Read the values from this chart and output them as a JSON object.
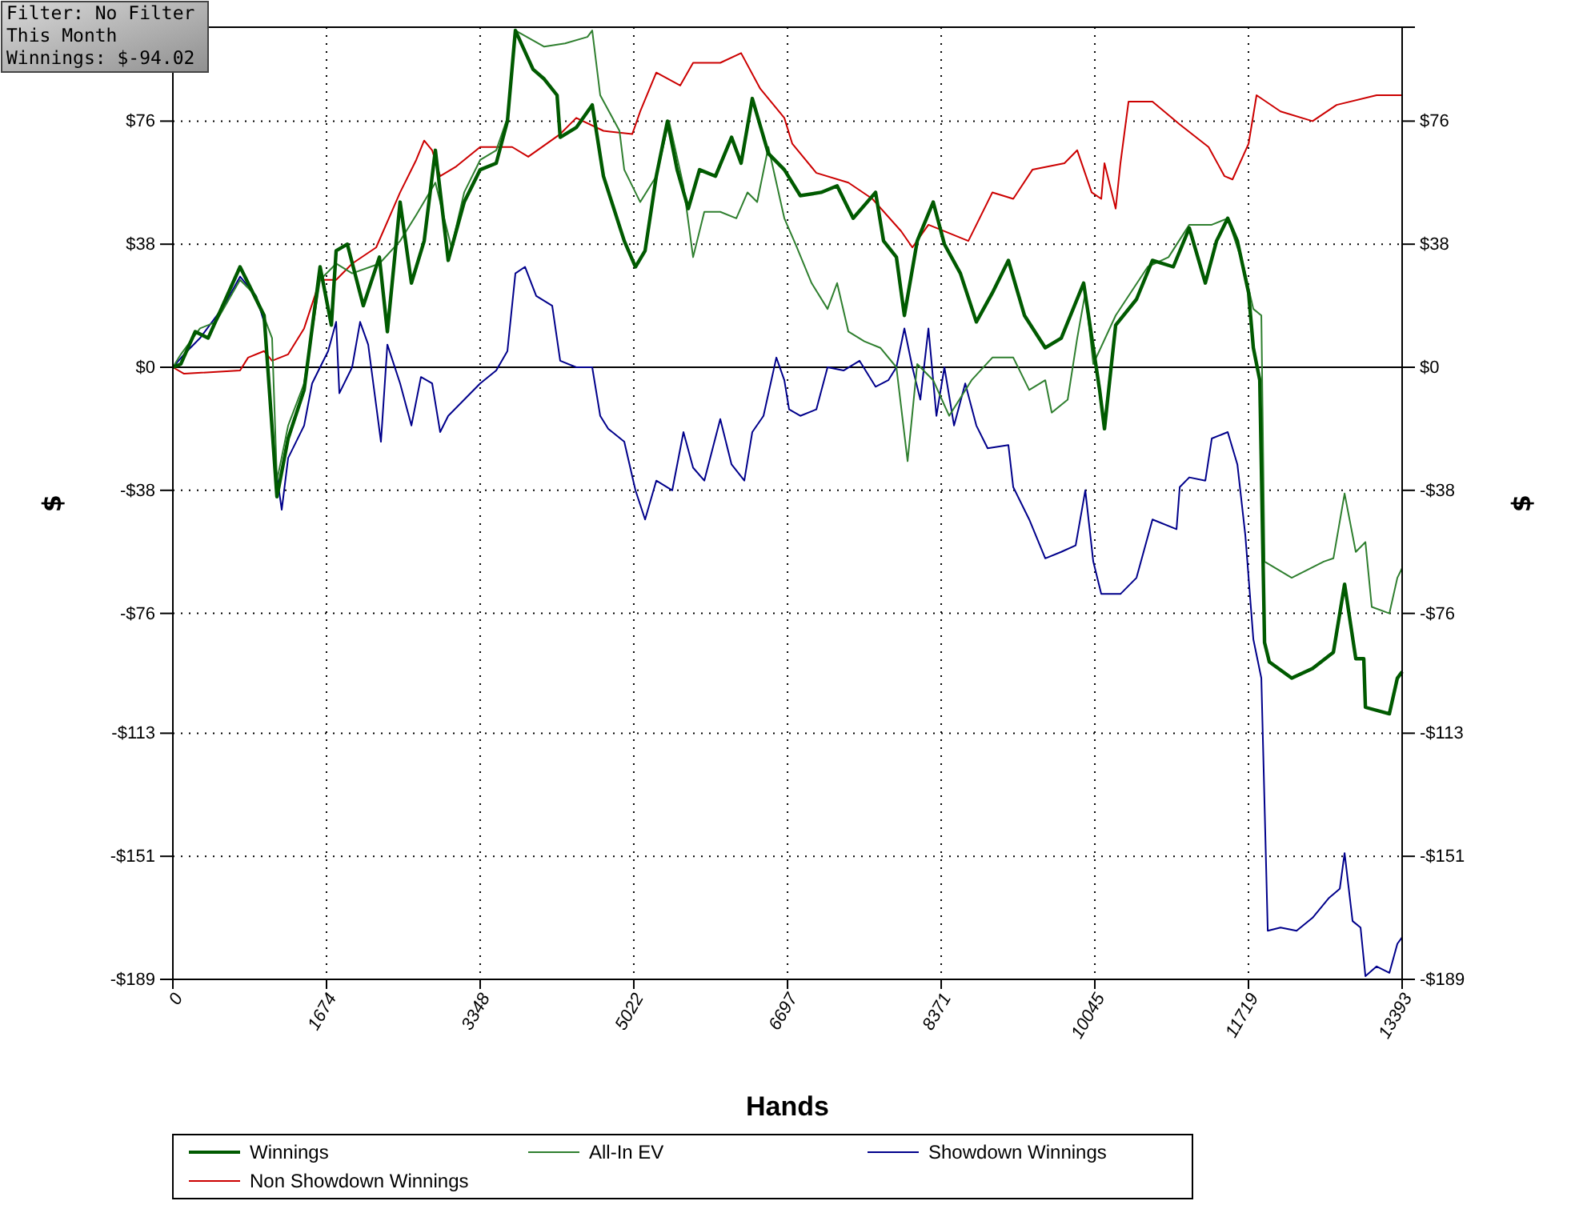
{
  "chart_data": {
    "type": "line",
    "xlabel": "Hands",
    "ylabel": "$",
    "y2label": "$",
    "annotations": [
      "Filter: No Filter",
      "This Month",
      "Winnings: $-94.02"
    ],
    "xlim": [
      0,
      13393
    ],
    "xticks": [
      0,
      1674,
      3348,
      5022,
      6697,
      8371,
      10045,
      11719,
      13393
    ],
    "ylim": [
      -189,
      105
    ],
    "yticks": [
      {
        "value": -189,
        "label": "-$189"
      },
      {
        "value": -151,
        "label": "-$151"
      },
      {
        "value": -113,
        "label": "-$113"
      },
      {
        "value": -76,
        "label": "-$76"
      },
      {
        "value": -38,
        "label": "-$38"
      },
      {
        "value": 0,
        "label": "$0"
      },
      {
        "value": 38,
        "label": "$38"
      },
      {
        "value": 76,
        "label": "$76"
      }
    ],
    "y2lim": [
      -189,
      105
    ],
    "y2ticks": [
      {
        "value": -189,
        "label": "-$189"
      },
      {
        "value": -151,
        "label": "-$151"
      },
      {
        "value": -113,
        "label": "-$113"
      },
      {
        "value": -76,
        "label": "-$76"
      },
      {
        "value": -38,
        "label": "-$38"
      },
      {
        "value": 0,
        "label": "$0"
      },
      {
        "value": 38,
        "label": "$38"
      },
      {
        "value": 76,
        "label": "$76"
      }
    ],
    "grid": true,
    "legend": "bottom",
    "line_style": "solid",
    "marker": "none",
    "ref_lines": [
      {
        "axis": "y",
        "value": 0,
        "color": "#000000"
      }
    ],
    "series": [
      {
        "name": "Winnings",
        "color": "#005a00",
        "x": [
          0,
          87,
          244,
          384,
          732,
          994,
          1134,
          1256,
          1430,
          1604,
          1727,
          1779,
          1901,
          2075,
          2250,
          2337,
          2476,
          2599,
          2738,
          2860,
          3000,
          3174,
          3348,
          3523,
          3645,
          3732,
          3924,
          4046,
          4186,
          4220,
          4395,
          4569,
          4691,
          4918,
          5040,
          5145,
          5267,
          5389,
          5494,
          5616,
          5738,
          5912,
          6087,
          6191,
          6313,
          6488,
          6662,
          6836,
          7063,
          7237,
          7412,
          7656,
          7743,
          7883,
          7970,
          8110,
          8284,
          8406,
          8580,
          8754,
          8929,
          9103,
          9278,
          9505,
          9679,
          9923,
          10097,
          10150,
          10272,
          10499,
          10673,
          10900,
          11074,
          11249,
          11371,
          11493,
          11598,
          11720,
          11772,
          11842,
          11894,
          11946,
          12190,
          12417,
          12644,
          12766,
          12888,
          12975,
          12993,
          13254,
          13341,
          13393
        ],
        "values": [
          0,
          1,
          11,
          9,
          31,
          16,
          -40,
          -22,
          -7,
          31,
          13,
          36,
          38,
          19,
          34,
          11,
          51,
          26,
          39,
          67,
          33,
          51,
          61,
          63,
          76,
          104,
          92,
          89,
          84,
          71,
          74,
          81,
          59,
          39,
          31,
          36,
          59,
          76,
          61,
          49,
          61,
          59,
          71,
          63,
          83,
          66,
          61,
          53,
          54,
          56,
          46,
          54,
          39,
          34,
          16,
          39,
          51,
          38,
          29,
          14,
          23,
          33,
          16,
          6,
          9,
          26,
          -7,
          -19,
          13,
          21,
          33,
          31,
          43,
          26,
          39,
          46,
          39,
          23,
          6,
          -4,
          -85,
          -91,
          -96,
          -93,
          -88,
          -67,
          -90,
          -90,
          -105,
          -107,
          -96,
          -94
        ]
      },
      {
        "name": "All-In EV",
        "color": "#2f7f2f",
        "x": [
          0,
          87,
          296,
          471,
          732,
          907,
          1081,
          1134,
          1256,
          1430,
          1604,
          1779,
          1953,
          2250,
          2476,
          2651,
          2860,
          3035,
          3174,
          3348,
          3523,
          3645,
          3732,
          4046,
          4273,
          4517,
          4569,
          4656,
          4866,
          4918,
          5092,
          5267,
          5406,
          5563,
          5668,
          5790,
          5964,
          6139,
          6261,
          6366,
          6488,
          6662,
          6784,
          6959,
          7133,
          7237,
          7360,
          7534,
          7708,
          7883,
          8005,
          8110,
          8284,
          8458,
          8702,
          8929,
          9156,
          9330,
          9505,
          9575,
          9749,
          9853,
          9941,
          10028,
          10272,
          10621,
          10848,
          11074,
          11319,
          11493,
          11667,
          11772,
          11859,
          11894,
          12190,
          12539,
          12644,
          12766,
          12888,
          12993,
          13062,
          13254,
          13341,
          13393
        ],
        "values": [
          0,
          4,
          12,
          14,
          27,
          22,
          9,
          -35,
          -18,
          -5,
          27,
          32,
          29,
          32,
          39,
          47,
          57,
          37,
          54,
          64,
          67,
          77,
          104,
          99,
          100,
          102,
          104,
          84,
          73,
          61,
          51,
          59,
          76,
          56,
          34,
          48,
          48,
          46,
          54,
          51,
          68,
          46,
          38,
          26,
          18,
          26,
          11,
          8,
          6,
          0,
          -29,
          1,
          -4,
          -15,
          -4,
          3,
          3,
          -7,
          -4,
          -14,
          -10,
          9,
          23,
          1,
          16,
          31,
          34,
          44,
          44,
          46,
          31,
          18,
          16,
          -60,
          -65,
          -60,
          -59,
          -39,
          -57,
          -54,
          -74,
          -76,
          -65,
          -62
        ]
      },
      {
        "name": "Showdown Winnings",
        "color": "#00008b",
        "x": [
          0,
          122,
          296,
          558,
          732,
          907,
          994,
          1116,
          1186,
          1256,
          1430,
          1517,
          1604,
          1692,
          1779,
          1814,
          1953,
          2040,
          2128,
          2267,
          2337,
          2476,
          2599,
          2703,
          2825,
          2912,
          3000,
          3174,
          3348,
          3523,
          3645,
          3732,
          3837,
          3959,
          4133,
          4220,
          4395,
          4569,
          4656,
          4744,
          4918,
          5040,
          5145,
          5267,
          5441,
          5563,
          5668,
          5790,
          5964,
          6087,
          6226,
          6313,
          6435,
          6575,
          6662,
          6714,
          6836,
          7011,
          7133,
          7307,
          7482,
          7656,
          7795,
          7883,
          7970,
          8057,
          8144,
          8232,
          8319,
          8406,
          8511,
          8633,
          8754,
          8877,
          9103,
          9156,
          9330,
          9505,
          9679,
          9836,
          9941,
          10028,
          10115,
          10324,
          10499,
          10673,
          10935,
          10970,
          11074,
          11249,
          11319,
          11493,
          11598,
          11685,
          11772,
          11859,
          11894,
          11929,
          12068,
          12243,
          12417,
          12591,
          12714,
          12766,
          12853,
          12940,
          12993,
          13115,
          13254,
          13341,
          13393
        ],
        "values": [
          0,
          4,
          9,
          19,
          28,
          22,
          14,
          -30,
          -44,
          -28,
          -18,
          -5,
          0,
          5,
          14,
          -8,
          0,
          14,
          7,
          -23,
          7,
          -5,
          -18,
          -3,
          -5,
          -20,
          -15,
          -10,
          -5,
          -1,
          5,
          29,
          31,
          22,
          19,
          2,
          0,
          0,
          -15,
          -19,
          -23,
          -38,
          -47,
          -35,
          -38,
          -20,
          -31,
          -35,
          -16,
          -30,
          -35,
          -20,
          -15,
          3,
          -4,
          -13,
          -15,
          -13,
          0,
          -1,
          2,
          -6,
          -4,
          0,
          12,
          0,
          -10,
          12,
          -15,
          0,
          -18,
          -5,
          -18,
          -25,
          -24,
          -37,
          -47,
          -59,
          -57,
          -55,
          -38,
          -60,
          -70,
          -70,
          -65,
          -47,
          -50,
          -37,
          -34,
          -35,
          -22,
          -20,
          -30,
          -52,
          -84,
          -96,
          -135,
          -174,
          -173,
          -174,
          -170,
          -164,
          -161,
          -150,
          -171,
          -173,
          -188,
          -185,
          -187,
          -178,
          -176
        ]
      },
      {
        "name": "Non Showdown Winnings",
        "color": "#cc0000",
        "x": [
          0,
          122,
          732,
          820,
          994,
          1081,
          1256,
          1430,
          1604,
          1779,
          1953,
          2215,
          2476,
          2651,
          2738,
          2825,
          2912,
          3087,
          3348,
          3697,
          3872,
          4220,
          4395,
          4691,
          5005,
          5092,
          5267,
          5528,
          5668,
          5964,
          6191,
          6400,
          6662,
          6749,
          7011,
          7360,
          7621,
          7935,
          8057,
          8232,
          8667,
          8929,
          9156,
          9365,
          9714,
          9853,
          10010,
          10115,
          10150,
          10272,
          10324,
          10412,
          10673,
          10970,
          11284,
          11458,
          11545,
          11720,
          11807,
          12068,
          12417,
          12679,
          13115,
          13393
        ],
        "values": [
          0,
          -2,
          -1,
          3,
          5,
          2,
          4,
          12,
          27,
          27,
          32,
          37,
          54,
          64,
          70,
          67,
          59,
          62,
          68,
          68,
          65,
          72,
          77,
          73,
          72,
          79,
          91,
          87,
          94,
          94,
          97,
          86,
          77,
          69,
          60,
          57,
          52,
          42,
          37,
          44,
          39,
          54,
          52,
          61,
          63,
          67,
          54,
          52,
          63,
          49,
          63,
          82,
          82,
          75,
          68,
          59,
          58,
          69,
          84,
          79,
          76,
          81,
          84,
          84
        ]
      }
    ]
  }
}
